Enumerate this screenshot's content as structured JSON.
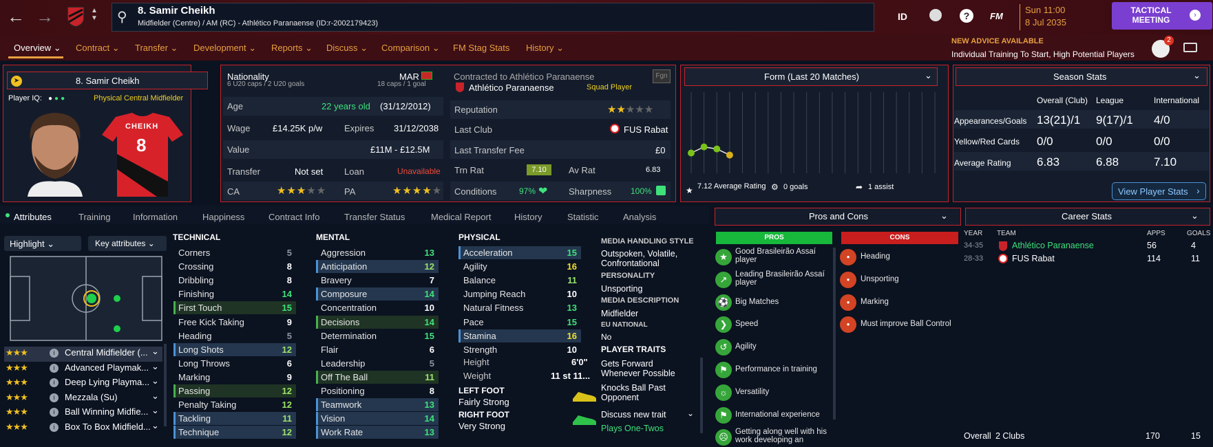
{
  "header": {
    "player_title": "8. Samir Cheikh",
    "player_sub": "Midfielder (Centre) / AM (RC) - Athlético Paranaense (ID:r-2002179423)",
    "id_label": "ID",
    "fm_label": "FM",
    "date_line1": "Sun 11:00",
    "date_line2": "8 Jul 2035",
    "tactical_meeting": "TACTICAL MEETING",
    "advice_title": "NEW ADVICE AVAILABLE",
    "advice_text": "Individual Training To Start, High Potential Players",
    "notif_count": "2"
  },
  "tabs": [
    {
      "label": "Overview"
    },
    {
      "label": "Contract"
    },
    {
      "label": "Transfer"
    },
    {
      "label": "Development"
    },
    {
      "label": "Reports"
    },
    {
      "label": "Discuss"
    },
    {
      "label": "Comparison"
    },
    {
      "label": "FM Stag Stats"
    },
    {
      "label": "History"
    }
  ],
  "card": {
    "name": "8. Samir Cheikh",
    "iq_label": "Player IQ:",
    "role": "Physical  Central Midfielder",
    "shirt_name": "CHEIKH",
    "shirt_number": "8"
  },
  "info": {
    "nationality_label": "Nationality",
    "nationality": "MAR",
    "caps_u20": "6 U20 caps / 2 U20 goals",
    "caps": "18 caps / 1 goal",
    "age_label": "Age",
    "age": "22 years old",
    "dob": "(31/12/2012)",
    "wage_label": "Wage",
    "wage": "£14.25K p/w",
    "expires_label": "Expires",
    "expires": "31/12/2038",
    "value_label": "Value",
    "value": "£11M - £12.5M",
    "transfer_label": "Transfer",
    "transfer": "Not set",
    "loan_label": "Loan",
    "loan": "Unavailable",
    "ca_label": "CA",
    "pa_label": "PA"
  },
  "club": {
    "contracted": "Contracted to Athlético Paranaense",
    "club_name": "Athlético Paranaense",
    "squad_status": "Squad Player",
    "fgn": "Fgn",
    "reputation_label": "Reputation",
    "last_club_label": "Last Club",
    "last_club": "FUS Rabat",
    "fee_label": "Last Transfer Fee",
    "fee": "£0",
    "trn_label": "Trn Rat",
    "trn": "7.10",
    "av_label": "Av Rat",
    "av": "6.83",
    "cond_label": "Conditions",
    "cond": "97%",
    "sharp_label": "Sharpness",
    "sharp": "100%"
  },
  "form": {
    "title": "Form (Last 20 Matches)",
    "avg": "7.12 Average Rating",
    "goals": "0 goals",
    "assists": "1 assist"
  },
  "season": {
    "title": "Season Stats",
    "col1": "Overall (Club)",
    "col2": "League",
    "col3": "International",
    "rows": [
      {
        "label": "Appearances/Goals",
        "v1": "13(21)/1",
        "v2": "9(17)/1",
        "v3": "4/0"
      },
      {
        "label": "Yellow/Red Cards",
        "v1": "0/0",
        "v2": "0/0",
        "v3": "0/0"
      },
      {
        "label": "Average Rating",
        "v1": "6.83",
        "v2": "6.88",
        "v3": "7.10"
      }
    ],
    "view_btn": "View Player Stats"
  },
  "subtabs": [
    "Attributes",
    "Training",
    "Information",
    "Happiness",
    "Contract Info",
    "Transfer Status",
    "Medical Report",
    "History",
    "Statistic",
    "Analysis"
  ],
  "highlight": "Highlight",
  "key_attrs": "Key attributes",
  "roles": [
    "Central Midfielder (...",
    "Advanced Playmak...",
    "Deep Lying Playma...",
    "Mezzala (Su)",
    "Ball Winning Midfie...",
    "Box To Box Midfield..."
  ],
  "technical": {
    "title": "TECHNICAL",
    "items": [
      {
        "n": "Corners",
        "v": "5"
      },
      {
        "n": "Crossing",
        "v": "8"
      },
      {
        "n": "Dribbling",
        "v": "8"
      },
      {
        "n": "Finishing",
        "v": "14"
      },
      {
        "n": "First Touch",
        "v": "15"
      },
      {
        "n": "Free Kick Taking",
        "v": "9"
      },
      {
        "n": "Heading",
        "v": "5"
      },
      {
        "n": "Long Shots",
        "v": "12"
      },
      {
        "n": "Long Throws",
        "v": "6"
      },
      {
        "n": "Marking",
        "v": "9"
      },
      {
        "n": "Passing",
        "v": "12"
      },
      {
        "n": "Penalty Taking",
        "v": "12"
      },
      {
        "n": "Tackling",
        "v": "11"
      },
      {
        "n": "Technique",
        "v": "12"
      }
    ]
  },
  "mental": {
    "title": "MENTAL",
    "items": [
      {
        "n": "Aggression",
        "v": "13"
      },
      {
        "n": "Anticipation",
        "v": "12"
      },
      {
        "n": "Bravery",
        "v": "7"
      },
      {
        "n": "Composure",
        "v": "14"
      },
      {
        "n": "Concentration",
        "v": "10"
      },
      {
        "n": "Decisions",
        "v": "14"
      },
      {
        "n": "Determination",
        "v": "15"
      },
      {
        "n": "Flair",
        "v": "6"
      },
      {
        "n": "Leadership",
        "v": "5"
      },
      {
        "n": "Off The Ball",
        "v": "11"
      },
      {
        "n": "Positioning",
        "v": "8"
      },
      {
        "n": "Teamwork",
        "v": "13"
      },
      {
        "n": "Vision",
        "v": "14"
      },
      {
        "n": "Work Rate",
        "v": "13"
      }
    ]
  },
  "physical": {
    "title": "PHYSICAL",
    "items": [
      {
        "n": "Acceleration",
        "v": "15"
      },
      {
        "n": "Agility",
        "v": "16"
      },
      {
        "n": "Balance",
        "v": "11"
      },
      {
        "n": "Jumping Reach",
        "v": "10"
      },
      {
        "n": "Natural Fitness",
        "v": "13"
      },
      {
        "n": "Pace",
        "v": "15"
      },
      {
        "n": "Stamina",
        "v": "16"
      },
      {
        "n": "Strength",
        "v": "10"
      }
    ],
    "height_label": "Height",
    "height": "6'0\"",
    "weight_label": "Weight",
    "weight": "11 st 11...",
    "left_foot_label": "LEFT FOOT",
    "left_foot": "Fairly Strong",
    "right_foot_label": "RIGHT FOOT",
    "right_foot": "Very Strong"
  },
  "media": {
    "style_label": "MEDIA HANDLING STYLE",
    "style": "Outspoken, Volatile, Confrontational",
    "pers_label": "PERSONALITY",
    "pers": "Unsporting",
    "desc_label": "MEDIA DESCRIPTION",
    "desc": "Midfielder",
    "eu_label": "EU NATIONAL",
    "eu": "No",
    "traits_label": "PLAYER TRAITS",
    "traits": [
      "Gets Forward Whenever Possible",
      "Knocks Ball Past Opponent"
    ],
    "discuss": "Discuss new trait",
    "plays": "Plays One-Twos"
  },
  "proscons": {
    "title": "Pros and Cons",
    "pros_label": "PROS",
    "cons_label": "CONS",
    "pros": [
      "Good Brasileirão Assaí player",
      "Leading Brasileirão Assaí player",
      "Big Matches",
      "Speed",
      "Agility",
      "Performance in training",
      "Versatility",
      "International experience",
      "Getting along well with his work developing an"
    ],
    "cons": [
      "Heading",
      "Unsporting",
      "Marking",
      "Must improve Ball Control"
    ]
  },
  "career": {
    "title": "Career Stats",
    "h_year": "YEAR",
    "h_team": "TEAM",
    "h_apps": "APPS",
    "h_goals": "GOALS",
    "rows": [
      {
        "year": "34-35",
        "team": "Athlético Paranaense",
        "apps": "56",
        "goals": "4"
      },
      {
        "year": "28-33",
        "team": "FUS Rabat",
        "apps": "114",
        "goals": "11"
      }
    ],
    "overall": "Overall",
    "clubs": "2 Clubs",
    "total_apps": "170",
    "total_goals": "15"
  },
  "form_points": [
    7.0,
    7.3,
    7.2,
    6.9
  ],
  "colors": {
    "accent": "#c8222a",
    "green": "#3fe27a",
    "orange": "#f0a030",
    "purple": "#7a3fd0"
  }
}
